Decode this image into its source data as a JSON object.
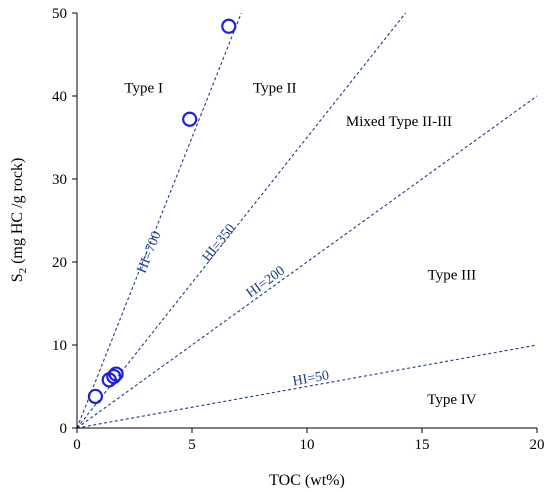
{
  "chart_data": {
    "type": "scatter",
    "title": "",
    "xlabel": "TOC (wt%)",
    "ylabel_main": "S",
    "ylabel_sub": "2",
    "ylabel_rest": " (mg HC /g rock)",
    "xlim": [
      0,
      20
    ],
    "ylim": [
      0,
      50
    ],
    "x_ticks": [
      0,
      5,
      10,
      15,
      20
    ],
    "y_ticks": [
      0,
      10,
      20,
      30,
      40,
      50
    ],
    "grid": false,
    "point_color": "#1f1fe0",
    "line_color": "#1f3c88",
    "points": [
      {
        "x": 0.8,
        "y": 3.8
      },
      {
        "x": 1.4,
        "y": 5.8
      },
      {
        "x": 1.6,
        "y": 6.2
      },
      {
        "x": 1.7,
        "y": 6.5
      },
      {
        "x": 4.9,
        "y": 37.2
      },
      {
        "x": 6.6,
        "y": 48.4
      }
    ],
    "hi_lines": [
      {
        "label": "HI=700",
        "hi": 700,
        "label_x": 3.3,
        "label_y": 21
      },
      {
        "label": "HI=350",
        "hi": 350,
        "label_x": 6.3,
        "label_y": 22
      },
      {
        "label": "HI=200",
        "hi": 200,
        "label_x": 8.3,
        "label_y": 17.2
      },
      {
        "label": "HI=50",
        "hi": 50,
        "label_x": 10.2,
        "label_y": 5.5
      }
    ],
    "regions": [
      {
        "label": "Type I",
        "x": 2.9,
        "y": 41
      },
      {
        "label": "Type II",
        "x": 8.6,
        "y": 41
      },
      {
        "label": "Mixed Type II-III",
        "x": 14,
        "y": 37
      },
      {
        "label": "Type III",
        "x": 16.3,
        "y": 18.5
      },
      {
        "label": "Type IV",
        "x": 16.3,
        "y": 3.5
      }
    ]
  }
}
